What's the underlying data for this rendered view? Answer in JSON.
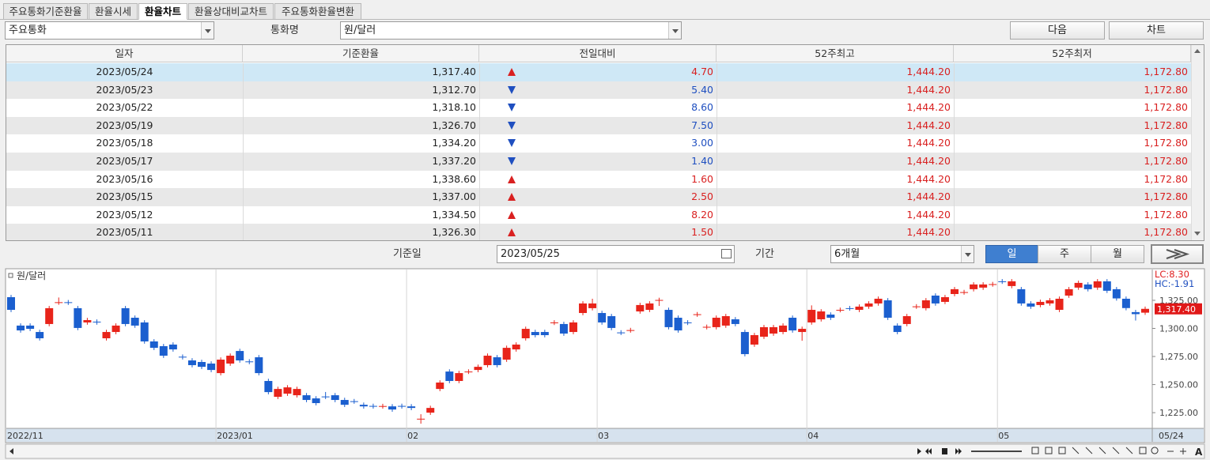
{
  "tabs": [
    "주요통화기준환율",
    "환율시세",
    "환율차트",
    "환율상대비교차트",
    "주요통화환율변환"
  ],
  "controls": {
    "group_select": "주요통화",
    "currency_label": "통화명",
    "currency_select": "원/달러",
    "next_button": "다음",
    "chart_button": "차트",
    "date_label": "기준일",
    "date_value": "2023/05/25",
    "period_label": "기간",
    "period_select": "6개월",
    "interval_buttons": [
      "일",
      "주",
      "월"
    ]
  },
  "table": {
    "columns": [
      "일자",
      "기준환율",
      "전일대비",
      "52주최고",
      "52주최저"
    ],
    "rows": [
      {
        "date": "2023/05/24",
        "rate": "1,317.40",
        "direction": "up",
        "change": "4.70",
        "high52": "1,444.20",
        "low52": "1,172.80"
      },
      {
        "date": "2023/05/23",
        "rate": "1,312.70",
        "direction": "down",
        "change": "5.40",
        "high52": "1,444.20",
        "low52": "1,172.80"
      },
      {
        "date": "2023/05/22",
        "rate": "1,318.10",
        "direction": "down",
        "change": "8.60",
        "high52": "1,444.20",
        "low52": "1,172.80"
      },
      {
        "date": "2023/05/19",
        "rate": "1,326.70",
        "direction": "down",
        "change": "7.50",
        "high52": "1,444.20",
        "low52": "1,172.80"
      },
      {
        "date": "2023/05/18",
        "rate": "1,334.20",
        "direction": "down",
        "change": "3.00",
        "high52": "1,444.20",
        "low52": "1,172.80"
      },
      {
        "date": "2023/05/17",
        "rate": "1,337.20",
        "direction": "down",
        "change": "1.40",
        "high52": "1,444.20",
        "low52": "1,172.80"
      },
      {
        "date": "2023/05/16",
        "rate": "1,338.60",
        "direction": "up",
        "change": "1.60",
        "high52": "1,444.20",
        "low52": "1,172.80"
      },
      {
        "date": "2023/05/15",
        "rate": "1,337.00",
        "direction": "up",
        "change": "2.50",
        "high52": "1,444.20",
        "low52": "1,172.80"
      },
      {
        "date": "2023/05/12",
        "rate": "1,334.50",
        "direction": "up",
        "change": "8.20",
        "high52": "1,444.20",
        "low52": "1,172.80"
      },
      {
        "date": "2023/05/11",
        "rate": "1,326.30",
        "direction": "up",
        "change": "1.50",
        "high52": "1,444.20",
        "low52": "1,172.80"
      }
    ]
  },
  "chart_data": {
    "type": "candlestick",
    "series_name": "원/달러",
    "annotations": [
      "LC:8.30",
      "HC:-1.91"
    ],
    "up_color": "#e8241a",
    "down_color": "#1b5fcf",
    "grid": true,
    "ylim": [
      1211,
      1351
    ],
    "yticks": [
      {
        "value": 1325,
        "label": "1,325.00"
      },
      {
        "value": 1300,
        "label": "1,300.00"
      },
      {
        "value": 1275,
        "label": "1,275.00"
      },
      {
        "value": 1250,
        "label": "1,250.00"
      },
      {
        "value": 1225,
        "label": "1,225.00"
      }
    ],
    "current_price": {
      "value": 1317.4,
      "label": "1,317.40"
    },
    "last_date": "05/24",
    "categories": [
      "2022/11",
      null,
      null,
      null,
      null,
      null,
      null,
      null,
      null,
      null,
      null,
      null,
      null,
      null,
      null,
      null,
      null,
      null,
      null,
      null,
      null,
      null,
      "2023/01",
      null,
      null,
      null,
      null,
      null,
      null,
      null,
      null,
      null,
      null,
      null,
      null,
      null,
      null,
      null,
      null,
      null,
      null,
      null,
      "02",
      null,
      null,
      null,
      null,
      null,
      null,
      null,
      null,
      null,
      null,
      null,
      null,
      null,
      null,
      null,
      null,
      null,
      null,
      null,
      "03",
      null,
      null,
      null,
      null,
      null,
      null,
      null,
      null,
      null,
      null,
      null,
      null,
      null,
      null,
      null,
      null,
      null,
      null,
      null,
      null,
      null,
      "04",
      null,
      null,
      null,
      null,
      null,
      null,
      null,
      null,
      null,
      null,
      null,
      null,
      null,
      null,
      null,
      null,
      null,
      null,
      null,
      "05",
      null,
      null,
      null,
      null,
      null,
      null,
      null,
      null,
      null,
      null,
      null,
      null,
      null,
      null,
      null
    ],
    "open": [
      1327.8,
      1302.5,
      1302.5,
      1296.8,
      1303.9,
      1323.0,
      1323.3,
      1318.0,
      1305.3,
      1306.0,
      1291.2,
      1296.8,
      1318.0,
      1309.5,
      1305.3,
      1288.4,
      1284.2,
      1285.6,
      1274.8,
      1271.5,
      1270.1,
      1268.7,
      1260.2,
      1268.7,
      1279.9,
      1270.6,
      1274.3,
      1253.2,
      1239.1,
      1241.9,
      1240.5,
      1240.5,
      1237.7,
      1239.4,
      1240.5,
      1236.3,
      1235.2,
      1232.0,
      1231.0,
      1230.6,
      1230.6,
      1231.0,
      1230.6,
      1219.2,
      1225.0,
      1246.1,
      1261.6,
      1253.2,
      1261.4,
      1263.0,
      1267.3,
      1274.3,
      1272.2,
      1281.3,
      1291.2,
      1296.8,
      1296.8,
      1305.0,
      1303.9,
      1296.8,
      1313.7,
      1318.0,
      1313.7,
      1310.9,
      1296.4,
      1298.2,
      1315.1,
      1316.5,
      1325.0,
      1316.5,
      1309.5,
      1305.3,
      1312.3,
      1301.1,
      1301.1,
      1302.5,
      1308.1,
      1296.8,
      1285.6,
      1292.6,
      1295.4,
      1296.8,
      1309.5,
      1296.8,
      1305.3,
      1308.1,
      1312.3,
      1316.3,
      1318.0,
      1316.5,
      1319.4,
      1322.2,
      1325.0,
      1302.5,
      1303.9,
      1319.4,
      1318.0,
      1329.2,
      1323.6,
      1330.6,
      1332.0,
      1334.9,
      1336.3,
      1339.1,
      1341.9,
      1337.7,
      1334.9,
      1322.2,
      1320.8,
      1322.2,
      1316.5,
      1329.2,
      1336.3,
      1339.1,
      1336.3,
      1341.9,
      1334.9,
      1326.4,
      1314.5,
      1314.0
    ],
    "high": [
      1329.8,
      1304.5,
      1304.5,
      1298.8,
      1320.0,
      1327.5,
      1325.3,
      1320.0,
      1309.4,
      1308.0,
      1298.8,
      1304.5,
      1320.0,
      1311.5,
      1307.3,
      1290.4,
      1286.2,
      1287.6,
      1276.8,
      1273.5,
      1272.1,
      1270.7,
      1274.2,
      1277.7,
      1281.9,
      1272.6,
      1276.3,
      1255.2,
      1248.1,
      1249.5,
      1248.1,
      1242.5,
      1239.7,
      1243.4,
      1242.5,
      1238.3,
      1237.2,
      1234.0,
      1233.0,
      1232.9,
      1232.6,
      1233.0,
      1232.6,
      1223.6,
      1231.2,
      1253.8,
      1263.6,
      1262.2,
      1263.6,
      1267.8,
      1277.7,
      1276.3,
      1284.7,
      1287.6,
      1301.6,
      1298.8,
      1298.8,
      1307.3,
      1305.9,
      1307.3,
      1324.2,
      1326.4,
      1315.7,
      1312.9,
      1298.4,
      1300.5,
      1322.8,
      1324.2,
      1327.3,
      1318.5,
      1311.5,
      1307.3,
      1314.6,
      1303.4,
      1311.5,
      1312.9,
      1310.1,
      1298.8,
      1296.0,
      1303.1,
      1303.1,
      1304.5,
      1311.5,
      1301.6,
      1320.5,
      1317.1,
      1314.3,
      1318.5,
      1320.0,
      1321.4,
      1324.2,
      1328.4,
      1327.0,
      1304.5,
      1312.9,
      1321.6,
      1327.0,
      1331.2,
      1329.8,
      1336.9,
      1334.3,
      1341.1,
      1341.1,
      1341.4,
      1343.9,
      1343.9,
      1336.9,
      1324.2,
      1325.6,
      1327.0,
      1328.4,
      1336.9,
      1342.5,
      1341.1,
      1343.9,
      1343.9,
      1336.9,
      1328.4,
      1316.5,
      1319.4
    ],
    "low": [
      1314.5,
      1296.2,
      1297.6,
      1289.2,
      1301.9,
      1321.0,
      1320.9,
      1298.4,
      1303.3,
      1303.3,
      1289.2,
      1294.8,
      1301.9,
      1300.5,
      1286.4,
      1280.7,
      1273.7,
      1279.3,
      1272.3,
      1265.3,
      1263.8,
      1261.0,
      1258.2,
      1266.7,
      1269.5,
      1268.1,
      1258.2,
      1241.3,
      1237.1,
      1239.9,
      1238.5,
      1234.3,
      1231.5,
      1237.1,
      1234.3,
      1230.0,
      1232.9,
      1228.6,
      1228.6,
      1228.6,
      1225.8,
      1228.6,
      1227.2,
      1215.2,
      1223.0,
      1244.1,
      1251.2,
      1251.2,
      1259.4,
      1261.0,
      1265.3,
      1265.3,
      1270.2,
      1279.3,
      1289.2,
      1292.0,
      1292.0,
      1303.0,
      1293.4,
      1294.8,
      1311.7,
      1316.0,
      1303.3,
      1298.4,
      1294.1,
      1296.2,
      1313.1,
      1314.5,
      1320.0,
      1299.1,
      1296.2,
      1303.0,
      1310.3,
      1299.1,
      1299.1,
      1300.5,
      1301.9,
      1275.1,
      1283.6,
      1290.6,
      1293.4,
      1294.8,
      1296.2,
      1289.0,
      1303.3,
      1306.1,
      1307.5,
      1314.3,
      1315.8,
      1314.5,
      1317.4,
      1320.2,
      1307.5,
      1294.8,
      1301.9,
      1317.4,
      1316.0,
      1320.2,
      1321.6,
      1328.6,
      1330.0,
      1332.9,
      1334.3,
      1337.1,
      1339.6,
      1335.7,
      1320.2,
      1317.4,
      1318.8,
      1320.2,
      1314.5,
      1327.2,
      1334.3,
      1332.9,
      1334.3,
      1331.5,
      1324.7,
      1316.1,
      1307.0,
      1312.0
    ],
    "close": [
      1316.5,
      1298.2,
      1299.6,
      1291.2,
      1318.0,
      1323.3,
      1322.9,
      1300.4,
      1307.4,
      1305.3,
      1296.8,
      1302.5,
      1303.9,
      1302.5,
      1288.4,
      1282.7,
      1275.7,
      1281.3,
      1274.3,
      1267.3,
      1265.8,
      1263.0,
      1272.2,
      1275.7,
      1271.5,
      1270.1,
      1260.2,
      1243.3,
      1246.1,
      1247.5,
      1246.1,
      1236.3,
      1233.5,
      1239.1,
      1236.3,
      1232.0,
      1234.9,
      1230.6,
      1230.6,
      1230.9,
      1227.8,
      1230.6,
      1229.2,
      1219.6,
      1229.2,
      1251.8,
      1253.2,
      1260.2,
      1261.6,
      1265.8,
      1275.7,
      1267.3,
      1282.7,
      1285.6,
      1299.6,
      1294.0,
      1294.0,
      1305.3,
      1295.4,
      1305.3,
      1322.2,
      1322.2,
      1305.3,
      1300.4,
      1296.1,
      1298.5,
      1320.8,
      1322.2,
      1325.3,
      1301.1,
      1298.2,
      1305.0,
      1312.6,
      1301.4,
      1309.5,
      1310.9,
      1303.9,
      1277.1,
      1294.0,
      1301.1,
      1301.1,
      1302.5,
      1298.2,
      1299.6,
      1316.5,
      1315.1,
      1309.5,
      1316.5,
      1317.8,
      1319.4,
      1322.2,
      1326.4,
      1309.5,
      1296.8,
      1310.9,
      1319.6,
      1325.0,
      1322.2,
      1327.8,
      1334.9,
      1332.3,
      1339.1,
      1339.1,
      1339.4,
      1341.6,
      1341.9,
      1322.2,
      1319.4,
      1323.6,
      1325.0,
      1326.4,
      1334.9,
      1340.5,
      1334.9,
      1341.9,
      1333.5,
      1326.7,
      1318.1,
      1312.7,
      1317.4
    ]
  }
}
